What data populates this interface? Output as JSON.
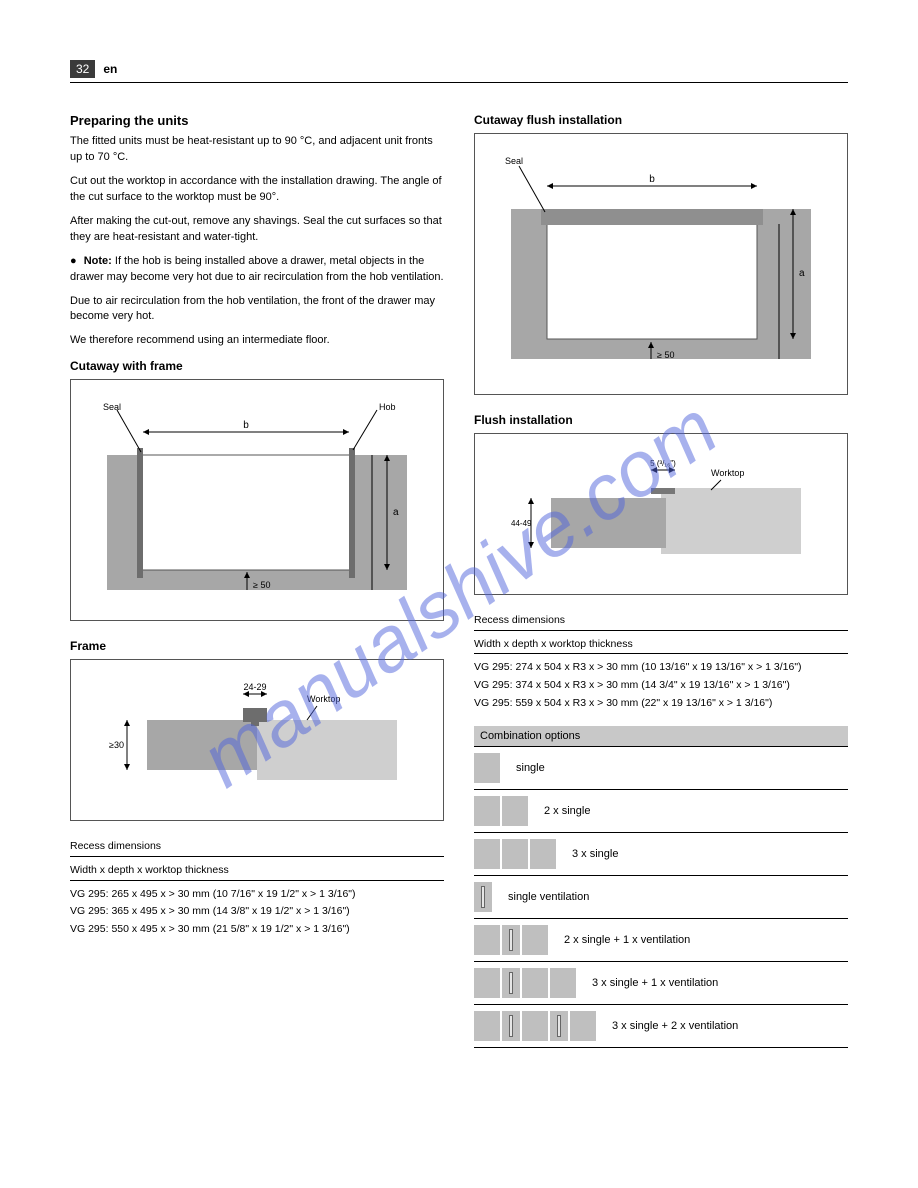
{
  "page_number": "32",
  "lang": "en",
  "section_title": "Preparing the units",
  "intro_1": "The fitted units must be heat-resistant up to 90 °C, and adjacent unit fronts up to 70 °C.",
  "intro_2": "Cut out the worktop in accordance with the installation drawing. The angle of the cut surface to the worktop must be 90°.",
  "intro_3": "After making the cut-out, remove any shavings. Seal the cut surfaces so that they are heat-resistant and water-tight.",
  "left": {
    "fig1": {
      "note1_head": "Note:",
      "note1": "If the hob is being installed above a drawer, metal objects in the drawer may become very hot due to air recirculation from the hob ventilation.",
      "note2": "Due to air recirculation from the hob ventilation, the front of the drawer may become very hot.",
      "note3": "We therefore recommend using an intermediate floor."
    },
    "fig1_title": "Cutaway with frame",
    "fig1_label_a": "Seal",
    "fig1_label_b": "Hob",
    "fig2_title": "Frame",
    "fig2_label_c": "Worktop",
    "dims_heading": "Recess dimensions",
    "dims_sub": "Width x depth x worktop thickness",
    "dims": [
      "VG 295: 265 x 495 x > 30 mm (10 7/16\" x 19 1/2\" x > 1 3/16\")",
      "VG 295: 365 x 495 x > 30 mm (14 3/8\" x 19 1/2\" x > 1 3/16\")",
      "VG 295: 550 x 495 x > 30 mm (21 5/8\" x 19 1/2\" x > 1 3/16\")"
    ],
    "f1_dim_w": "b",
    "f1_dim_h": "a",
    "f1_dim_g": "≥ 50",
    "f2_dim_a": "24 - 29",
    "f2_dim_b": "≥ 30"
  },
  "right": {
    "fig3_title": "Cutaway flush installation",
    "fig3_label": "Seal",
    "fig4_title": "Flush installation",
    "fig4_label_c": "Worktop",
    "f3_dim_w": "b",
    "f3_dim_h": "a",
    "f3_dim_g": "≥ 50",
    "f4_dim_a": "5 (³/₁₆\")",
    "f4_dim_b": "44 - 49",
    "dims_heading": "Recess dimensions",
    "dims_sub": "Width x depth x worktop thickness",
    "dims": [
      "VG 295: 274 x 504 x R3 x > 30 mm (10 13/16\" x 19 13/16\" x > 1 3/16\")",
      "VG 295: 374 x 504 x R3 x > 30 mm (14 3/4\" x 19 13/16\" x > 1 3/16\")",
      "VG 295: 559 x 504 x R3 x > 30 mm (22\" x 19 13/16\" x > 1 3/16\")"
    ],
    "combo_header_text": "Combination options",
    "combos": [
      {
        "mods": [
          {
            "w": "26"
          }
        ],
        "label": "single"
      },
      {
        "mods": [
          {
            "w": "26"
          },
          {
            "w": "26"
          }
        ],
        "label": "2 x single"
      },
      {
        "mods": [
          {
            "w": "26"
          },
          {
            "w": "26"
          },
          {
            "w": "26"
          }
        ],
        "label": "3 x single"
      },
      {
        "mods": [
          {
            "w": "18",
            "slot": true
          }
        ],
        "label": "single ventilation"
      },
      {
        "mods": [
          {
            "w": "26"
          },
          {
            "w": "18",
            "slot": true
          },
          {
            "w": "26"
          }
        ],
        "label": "2 x single + 1 x ventilation"
      },
      {
        "mods": [
          {
            "w": "26"
          },
          {
            "w": "18",
            "slot": true
          },
          {
            "w": "26"
          },
          {
            "w": "26"
          }
        ],
        "label": "3 x single + 1 x ventilation"
      },
      {
        "mods": [
          {
            "w": "26"
          },
          {
            "w": "18",
            "slot": true
          },
          {
            "w": "26"
          },
          {
            "w": "18",
            "slot": true
          },
          {
            "w": "26"
          }
        ],
        "label": "3 x single + 2 x ventilation"
      }
    ]
  },
  "colors": {
    "panel_grey": "#a7a7a7",
    "light_grey": "#cfcfcf",
    "dark_grey": "#6d6d6d"
  }
}
